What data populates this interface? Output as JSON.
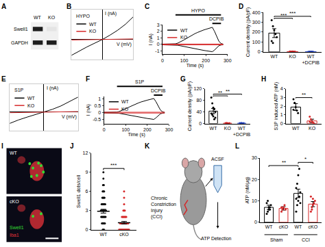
{
  "chart_data": [
    {
      "panel": "A",
      "type": "blot",
      "lanes": [
        "WT",
        "KO"
      ],
      "rows": [
        "Swell1",
        "GAPDH"
      ],
      "bands": [
        [
          1,
          0
        ],
        [
          1,
          1
        ]
      ]
    },
    {
      "panel": "B",
      "type": "line",
      "label": "HYPO",
      "xlabel": "V (mV)",
      "ylabel": "I (nA)",
      "tick_labels": false,
      "legend": "upper left",
      "xlim": [
        -100,
        100
      ],
      "ylim": [
        -2,
        3
      ],
      "x": [
        -100,
        -75,
        -50,
        -25,
        0,
        25,
        50,
        75,
        100
      ],
      "series": [
        {
          "name": "WT",
          "color": "#000000",
          "values": [
            -1.6,
            -1.15,
            -0.75,
            -0.37,
            0,
            0.45,
            0.95,
            1.55,
            2.3
          ]
        },
        {
          "name": "KO",
          "color": "#d62728",
          "values": [
            -0.05,
            -0.04,
            -0.03,
            -0.01,
            0,
            0.01,
            0.03,
            0.04,
            0.06
          ]
        }
      ]
    },
    {
      "panel": "C",
      "type": "line",
      "xlabel": "Time (s)",
      "ylabel": "I (nA)",
      "legend": "upper left",
      "xlim": [
        0,
        300
      ],
      "xticks": [
        0,
        100,
        200,
        300
      ],
      "ylim": [
        -1.5,
        3
      ],
      "yticks": [
        -1,
        0,
        1,
        2,
        3
      ],
      "annotations": [
        {
          "text": "HYPO",
          "x0": 60,
          "x1": 270
        },
        {
          "text": "DCPIB",
          "x0": 230,
          "x1": 270
        }
      ],
      "x": [
        0,
        10,
        20,
        30,
        40,
        50,
        60,
        70,
        80,
        90,
        100,
        110,
        120,
        130,
        140,
        150,
        160,
        170,
        180,
        190,
        200,
        210,
        220,
        230,
        240,
        250,
        260,
        270,
        280
      ],
      "series": [
        {
          "name": "WT",
          "color": "#000000",
          "values": [
            0.05,
            0.05,
            0.05,
            0.05,
            0.05,
            0.05,
            0.1,
            0.2,
            0.35,
            0.5,
            0.7,
            0.9,
            1.1,
            1.3,
            1.5,
            1.65,
            1.8,
            1.95,
            2.1,
            2.2,
            2.3,
            2.4,
            2.5,
            2.6,
            2.0,
            1.2,
            0.5,
            0.15,
            0.05
          ]
        },
        {
          "name": "WT",
          "color": "#000000",
          "values": [
            -0.05,
            -0.05,
            -0.05,
            -0.05,
            -0.05,
            -0.05,
            -0.08,
            -0.12,
            -0.18,
            -0.25,
            -0.32,
            -0.4,
            -0.48,
            -0.55,
            -0.62,
            -0.68,
            -0.74,
            -0.8,
            -0.85,
            -0.9,
            -0.95,
            -1.0,
            -1.05,
            -1.1,
            -0.85,
            -0.5,
            -0.2,
            -0.08,
            -0.05
          ]
        },
        {
          "name": "KO",
          "color": "#d62728",
          "values": [
            0.06,
            0.06,
            0.06,
            0.06,
            0.06,
            0.06,
            0.06,
            0.06,
            0.06,
            0.06,
            0.06,
            0.06,
            0.06,
            0.06,
            0.06,
            0.06,
            0.06,
            0.06,
            0.06,
            0.06,
            0.06,
            0.06,
            0.06,
            0.06,
            0.06,
            0.06,
            0.06,
            0.06,
            0.06
          ]
        },
        {
          "name": "KO",
          "color": "#d62728",
          "values": [
            -0.06,
            -0.06,
            -0.06,
            -0.06,
            -0.06,
            -0.06,
            -0.06,
            -0.06,
            -0.06,
            -0.06,
            -0.06,
            -0.06,
            -0.06,
            -0.06,
            -0.06,
            -0.06,
            -0.06,
            -0.06,
            -0.06,
            -0.06,
            -0.06,
            -0.06,
            -0.06,
            -0.06,
            -0.06,
            -0.06,
            -0.06,
            -0.06,
            -0.06
          ]
        }
      ]
    },
    {
      "panel": "D",
      "type": "bar",
      "ylabel": "Current density (pA/pF)",
      "categories": [
        "WT",
        "KO",
        "WT\n+DCPIB"
      ],
      "values": [
        190,
        3,
        2
      ],
      "errors": [
        45,
        1,
        1
      ],
      "colors": [
        "#000000",
        "#d62728",
        "#1f3fbf"
      ],
      "points": [
        [
          320,
          260,
          220,
          180,
          150,
          110,
          90
        ],
        [
          2,
          3,
          4,
          3,
          2,
          4
        ],
        [
          1,
          2,
          3,
          2,
          1
        ]
      ],
      "ylim": [
        0,
        400
      ],
      "yticks": [
        0,
        100,
        200,
        300,
        400
      ],
      "significance": [
        {
          "from": 0,
          "to": 1,
          "label": "***"
        },
        {
          "from": 0,
          "to": 2,
          "label": "***"
        }
      ]
    },
    {
      "panel": "E",
      "type": "line",
      "label": "S1P",
      "xlabel": "V (mV)",
      "ylabel": "I (nA)",
      "tick_labels": false,
      "legend": "upper left",
      "xlim": [
        -100,
        100
      ],
      "ylim": [
        -1,
        1.5
      ],
      "x": [
        -100,
        -75,
        -50,
        -25,
        0,
        25,
        50,
        75,
        100
      ],
      "series": [
        {
          "name": "WT",
          "color": "#000000",
          "values": [
            -0.6,
            -0.42,
            -0.27,
            -0.13,
            0,
            0.15,
            0.33,
            0.55,
            0.8
          ]
        },
        {
          "name": "KO",
          "color": "#d62728",
          "values": [
            -0.03,
            -0.02,
            -0.02,
            -0.01,
            0,
            0.01,
            0.02,
            0.02,
            0.03
          ]
        }
      ]
    },
    {
      "panel": "F",
      "type": "line",
      "xlabel": "Time (s)",
      "ylabel": "I (nA)",
      "legend": "upper left",
      "xlim": [
        0,
        300
      ],
      "xticks": [
        0,
        100,
        200,
        300
      ],
      "ylim": [
        -0.8,
        1.2
      ],
      "yticks": [
        -0.5,
        0,
        0.5,
        1
      ],
      "annotations": [
        {
          "text": "S1P",
          "x0": 60,
          "x1": 270
        },
        {
          "text": "DCPIB",
          "x0": 230,
          "x1": 270
        }
      ],
      "x": [
        0,
        10,
        20,
        30,
        40,
        50,
        60,
        70,
        80,
        90,
        100,
        110,
        120,
        130,
        140,
        150,
        160,
        170,
        180,
        190,
        200,
        210,
        220,
        230,
        240,
        250,
        260,
        270,
        280
      ],
      "series": [
        {
          "name": "WT",
          "color": "#000000",
          "values": [
            0.02,
            0.02,
            0.02,
            0.02,
            0.02,
            0.02,
            0.04,
            0.08,
            0.14,
            0.2,
            0.28,
            0.36,
            0.44,
            0.52,
            0.6,
            0.66,
            0.72,
            0.78,
            0.84,
            0.88,
            0.92,
            0.96,
            1.0,
            1.04,
            0.8,
            0.48,
            0.2,
            0.06,
            0.02
          ]
        },
        {
          "name": "WT",
          "color": "#000000",
          "values": [
            -0.02,
            -0.02,
            -0.02,
            -0.02,
            -0.02,
            -0.02,
            -0.04,
            -0.05,
            -0.08,
            -0.11,
            -0.14,
            -0.18,
            -0.22,
            -0.25,
            -0.28,
            -0.31,
            -0.33,
            -0.36,
            -0.38,
            -0.41,
            -0.43,
            -0.45,
            -0.47,
            -0.5,
            -0.38,
            -0.22,
            -0.09,
            -0.04,
            -0.02
          ]
        },
        {
          "name": "KO",
          "color": "#d62728",
          "values": [
            0.03,
            0.03,
            0.03,
            0.03,
            0.03,
            0.03,
            0.03,
            0.03,
            0.03,
            0.03,
            0.03,
            0.03,
            0.03,
            0.03,
            0.03,
            0.03,
            0.03,
            0.03,
            0.03,
            0.03,
            0.03,
            0.03,
            0.03,
            0.03,
            0.03,
            0.03,
            0.03,
            0.03,
            0.03
          ]
        },
        {
          "name": "KO",
          "color": "#d62728",
          "values": [
            -0.03,
            -0.03,
            -0.03,
            -0.03,
            -0.03,
            -0.03,
            -0.03,
            -0.03,
            -0.03,
            -0.03,
            -0.03,
            -0.03,
            -0.03,
            -0.03,
            -0.03,
            -0.03,
            -0.03,
            -0.03,
            -0.03,
            -0.03,
            -0.03,
            -0.03,
            -0.03,
            -0.03,
            -0.03,
            -0.03,
            -0.03,
            -0.03,
            -0.03
          ]
        }
      ]
    },
    {
      "panel": "G",
      "type": "bar",
      "ylabel": "Current density (pA/pF)",
      "categories": [
        "WT",
        "KO",
        "WT\n+DCPIB"
      ],
      "values": [
        43,
        1,
        1
      ],
      "errors": [
        9,
        0.5,
        0.5
      ],
      "colors": [
        "#000000",
        "#d62728",
        "#1f3fbf"
      ],
      "points": [
        [
          90,
          70,
          55,
          50,
          40,
          35,
          30,
          25,
          15,
          20
        ],
        [
          1,
          2,
          1,
          0,
          1
        ],
        [
          1,
          1,
          2,
          0,
          1
        ]
      ],
      "ylim": [
        0,
        120
      ],
      "yticks": [
        0,
        40,
        80,
        120
      ],
      "significance": [
        {
          "from": 0,
          "to": 1,
          "label": "**"
        },
        {
          "from": 0,
          "to": 2,
          "label": "**"
        }
      ]
    },
    {
      "panel": "H",
      "type": "bar",
      "ylabel": "S1P induced ATP (nM)",
      "categories": [
        "WT",
        "KO"
      ],
      "values": [
        1.9,
        0.3
      ],
      "errors": [
        0.4,
        0.2
      ],
      "colors": [
        "#000000",
        "#d62728"
      ],
      "points": [
        [
          2.8,
          2.4,
          1.9,
          1.5,
          1.2,
          1.6
        ],
        [
          0.8,
          0.5,
          0.2,
          0.1,
          0,
          0.2
        ]
      ],
      "ylim": [
        0,
        4
      ],
      "yticks": [
        0,
        1,
        2,
        3,
        4
      ],
      "significance": [
        {
          "from": 0,
          "to": 1,
          "label": "**"
        }
      ]
    },
    {
      "panel": "I",
      "type": "micrograph",
      "images": [
        "WT",
        "cKO"
      ],
      "channels": [
        {
          "name": "Swell1",
          "color": "#33dd33"
        },
        {
          "name": "Iba1",
          "color": "#e8333a"
        }
      ]
    },
    {
      "panel": "J",
      "type": "strip",
      "ylabel": "Swell1 dots/cell",
      "categories": [
        "WT",
        "cKO"
      ],
      "values": [
        2.9,
        1.1
      ],
      "errors": [
        0.3,
        0.2
      ],
      "colors": [
        "#000000",
        "#d62728"
      ],
      "points": [
        [
          0,
          0,
          1,
          1,
          1,
          1,
          2,
          2,
          2,
          2,
          2,
          2,
          3,
          3,
          3,
          3,
          3,
          3,
          3,
          4,
          4,
          4,
          4,
          4,
          5,
          5,
          5,
          5,
          6,
          6,
          6,
          7,
          7,
          8,
          9,
          2,
          3,
          1,
          0,
          4
        ],
        [
          0,
          0,
          0,
          0,
          0,
          0,
          0,
          0,
          0,
          0,
          1,
          1,
          1,
          1,
          1,
          1,
          1,
          1,
          1,
          2,
          2,
          2,
          2,
          2,
          3,
          3,
          3,
          4,
          5,
          6,
          0,
          1,
          2,
          0,
          1,
          0,
          0,
          1,
          2,
          0
        ]
      ],
      "ylim": [
        0,
        12
      ],
      "yticks": [
        0,
        3,
        6,
        9,
        12
      ],
      "significance": [
        {
          "from": 0,
          "to": 1,
          "label": "***"
        }
      ]
    },
    {
      "panel": "K",
      "type": "schematic",
      "injury": "Chronic\nConstriction\nInjury\n(CCI)",
      "medium": "ACSF",
      "readout": "ATP Detection"
    },
    {
      "panel": "L",
      "type": "bar",
      "ylabel": "ATP (nM/μg)",
      "categories": [
        "WT",
        "cKO",
        "WT",
        "cKO"
      ],
      "values": [
        7,
        6.5,
        13.5,
        8.5
      ],
      "errors": [
        1,
        0.8,
        2,
        1.2
      ],
      "colors": [
        "#000000",
        "#d62728",
        "#000000",
        "#d62728"
      ],
      "groups": [
        {
          "label": "Sham",
          "from": 0,
          "to": 1
        },
        {
          "label": "CCI",
          "from": 2,
          "to": 3
        }
      ],
      "points": [
        [
          4,
          5,
          6,
          7,
          8,
          9,
          10,
          7,
          6
        ],
        [
          5,
          6,
          7,
          8,
          6,
          7
        ],
        [
          5,
          8,
          10,
          12,
          14,
          16,
          18,
          22,
          25,
          9,
          11
        ],
        [
          5,
          6,
          8,
          9,
          10,
          12,
          7,
          11
        ]
      ],
      "ylim": [
        0,
        30
      ],
      "yticks": [
        0,
        10,
        20,
        30
      ],
      "significance": [
        {
          "from": 0,
          "to": 2,
          "label": "**"
        },
        {
          "from": 2,
          "to": 3,
          "label": "*"
        }
      ]
    }
  ]
}
